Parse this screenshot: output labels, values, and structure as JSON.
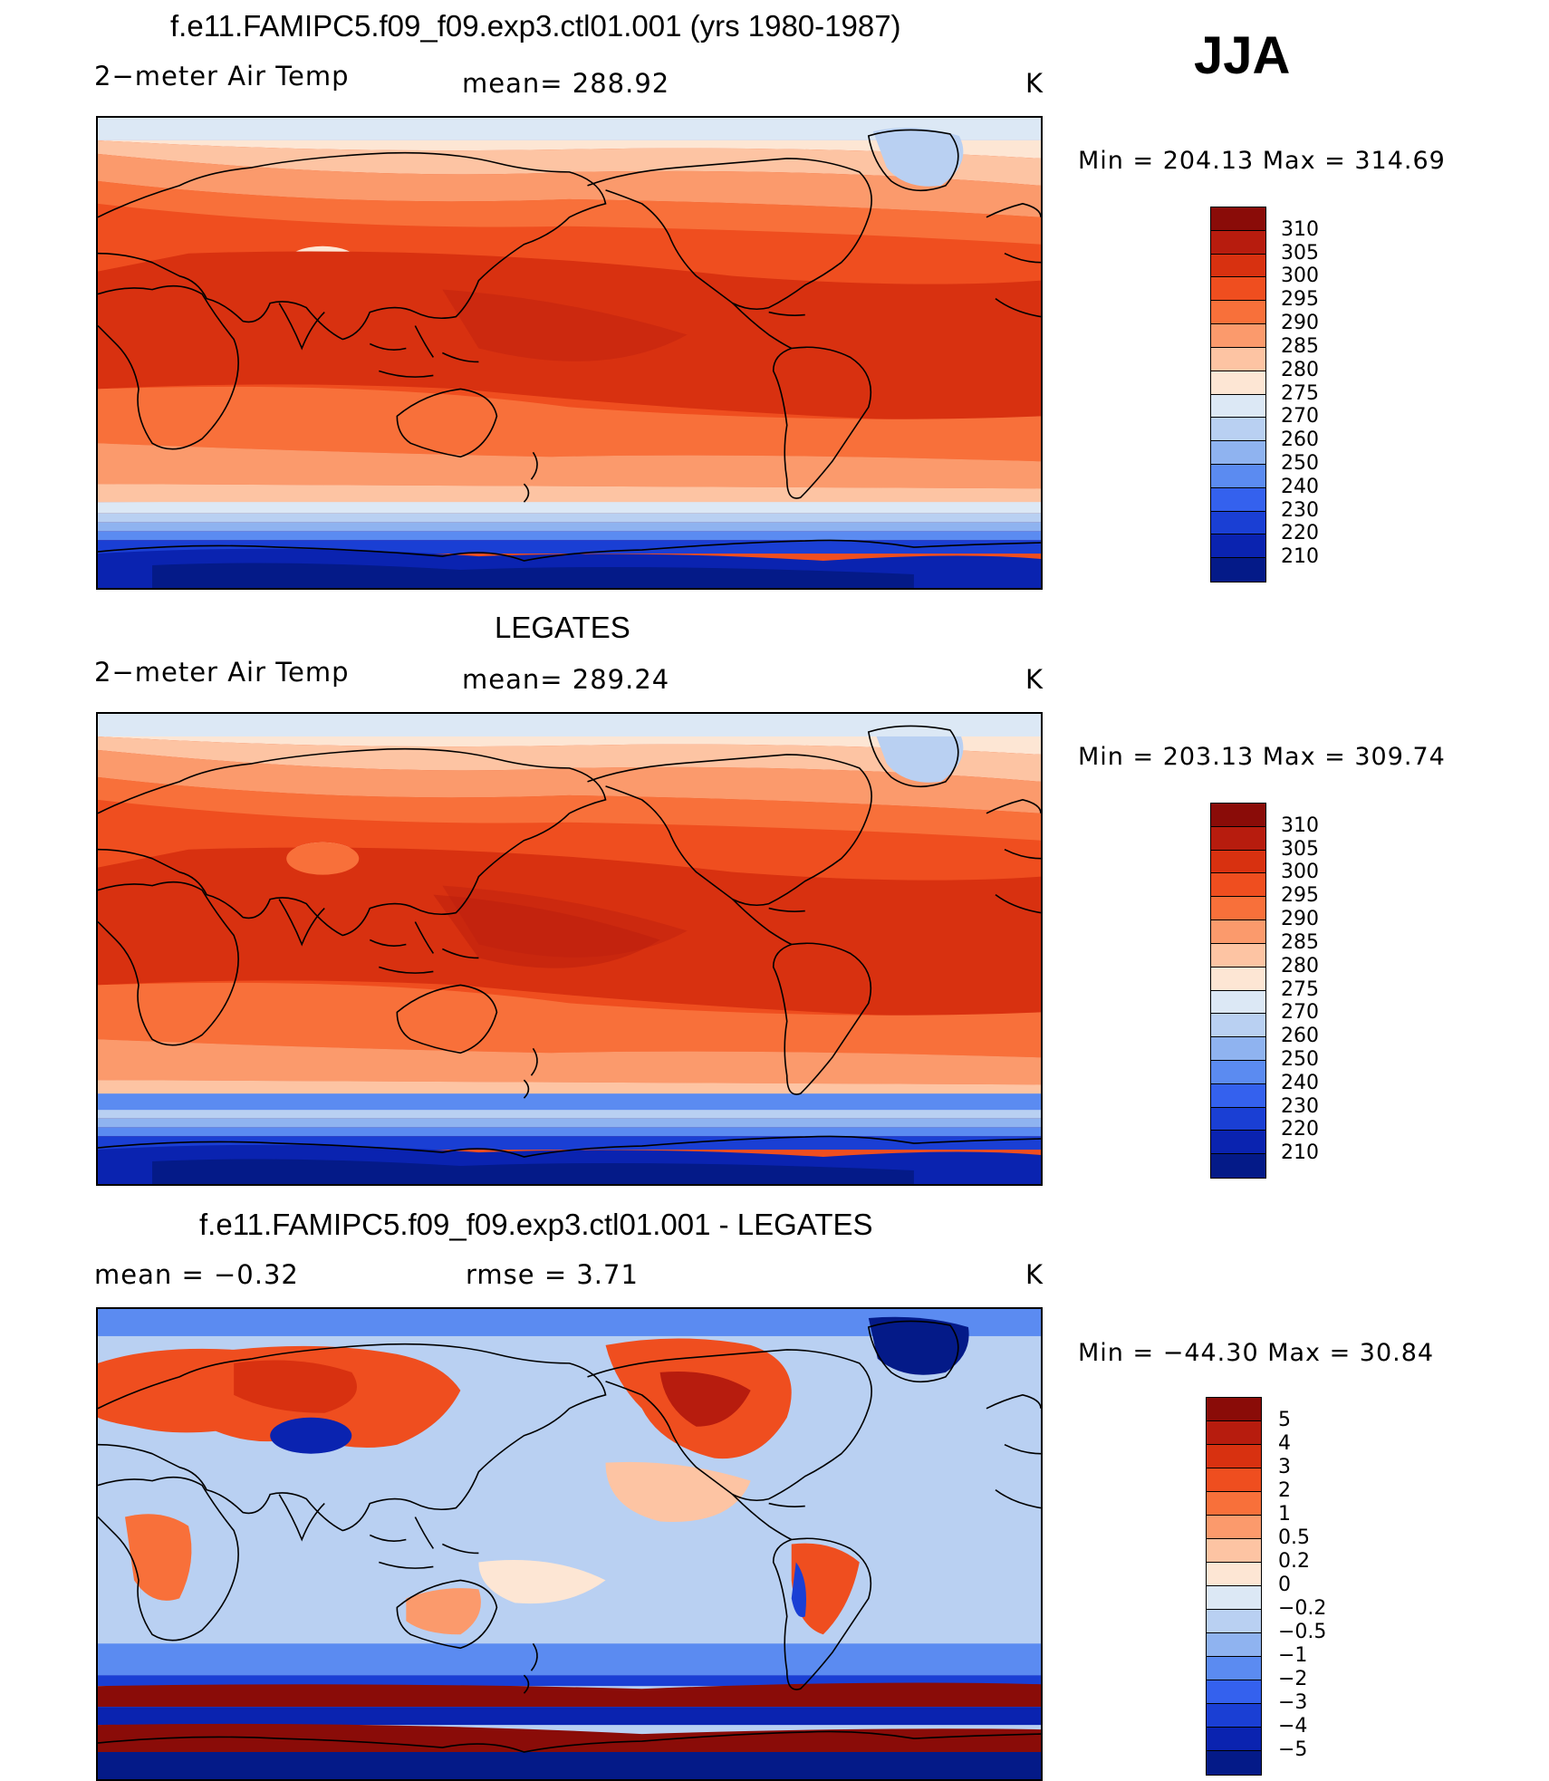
{
  "season_label": "JJA",
  "panels": [
    {
      "title": "f.e11.FAMIPC5.f09_f09.exp3.ctl01.001 (yrs 1980-1987)",
      "left_label": "2−meter Air Temp",
      "center_label": "mean=  288.92",
      "units": "K",
      "minmax": "Min  =  204.13  Max  =  314.69",
      "colorbar": {
        "labels": [
          "310",
          "305",
          "300",
          "295",
          "290",
          "285",
          "280",
          "275",
          "270",
          "260",
          "250",
          "240",
          "230",
          "220",
          "210"
        ],
        "colors": [
          "#8a0c08",
          "#b71c0e",
          "#d83110",
          "#ef4e1f",
          "#f8703a",
          "#fb9a6c",
          "#fdc4a3",
          "#fde6d4",
          "#dce8f5",
          "#b9d0f2",
          "#8fb3f0",
          "#5b8bf1",
          "#3461ee",
          "#1a3fd4",
          "#0a23b0",
          "#041a88"
        ]
      }
    },
    {
      "title": "LEGATES",
      "left_label": "2−meter Air Temp",
      "center_label": "mean=  289.24",
      "units": "K",
      "minmax": "Min  =  203.13  Max  =  309.74",
      "colorbar": {
        "labels": [
          "310",
          "305",
          "300",
          "295",
          "290",
          "285",
          "280",
          "275",
          "270",
          "260",
          "250",
          "240",
          "230",
          "220",
          "210"
        ],
        "colors": [
          "#8a0c08",
          "#b71c0e",
          "#d83110",
          "#ef4e1f",
          "#f8703a",
          "#fb9a6c",
          "#fdc4a3",
          "#fde6d4",
          "#dce8f5",
          "#b9d0f2",
          "#8fb3f0",
          "#5b8bf1",
          "#3461ee",
          "#1a3fd4",
          "#0a23b0",
          "#041a88"
        ]
      }
    },
    {
      "title": "f.e11.FAMIPC5.f09_f09.exp3.ctl01.001 - LEGATES",
      "left_label": "mean  =    −0.32",
      "center_label": "rmse  =     3.71",
      "units": "K",
      "minmax": "Min  =  −44.30  Max  =    30.84",
      "colorbar": {
        "labels": [
          "5",
          "4",
          "3",
          "2",
          "1",
          "0.5",
          "0.2",
          "0",
          "−0.2",
          "−0.5",
          "−1",
          "−2",
          "−3",
          "−4",
          "−5"
        ],
        "colors": [
          "#8a0c08",
          "#b71c0e",
          "#d83110",
          "#ef4e1f",
          "#f8703a",
          "#fb9a6c",
          "#fdc4a3",
          "#fde6d4",
          "#dce8f5",
          "#b9d0f2",
          "#8fb3f0",
          "#5b8bf1",
          "#3461ee",
          "#1a3fd4",
          "#0a23b0",
          "#041a88"
        ]
      }
    }
  ]
}
